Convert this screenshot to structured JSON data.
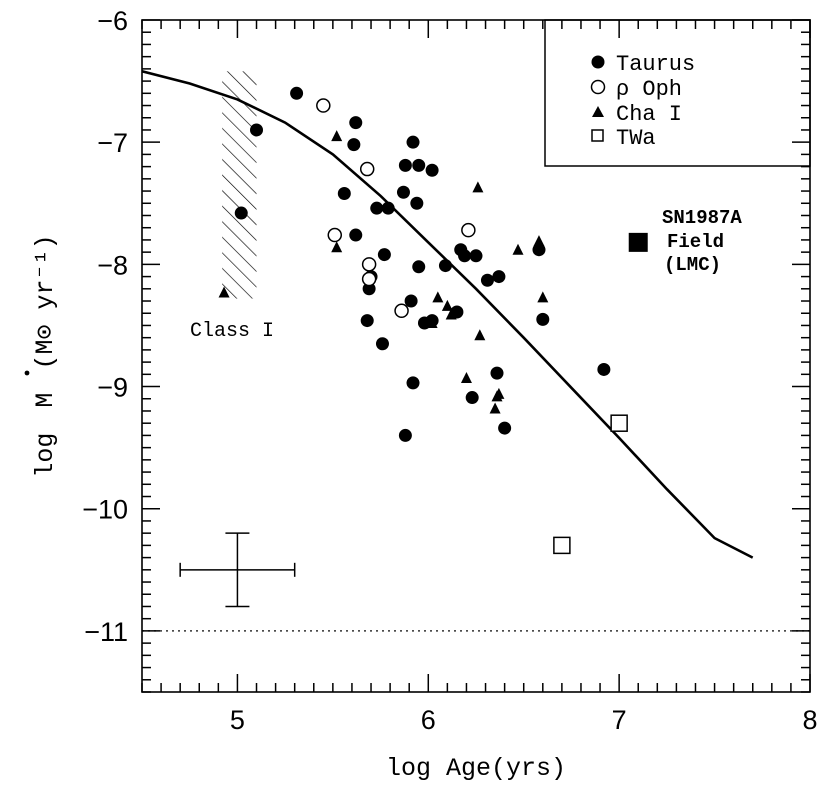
{
  "chart_data": {
    "type": "scatter",
    "xlabel": "log Age(yrs)",
    "ylabel_prefix": "log",
    "ylabel_symbol": "M",
    "ylabel_units": "(M⊙ yr⁻¹)",
    "xlim": [
      4.5,
      8
    ],
    "ylim": [
      -11.5,
      -6
    ],
    "xticks": [
      5,
      6,
      7,
      8
    ],
    "yticks": [
      -6,
      -7,
      -8,
      -9,
      -10,
      -11
    ],
    "xtick_labels": [
      "5",
      "6",
      "7",
      "8"
    ],
    "ytick_labels": [
      "−6",
      "−7",
      "−8",
      "−9",
      "−10",
      "−11"
    ],
    "series": [
      {
        "name": "Taurus",
        "marker": "filled-circle",
        "points": [
          [
            5.02,
            -7.58
          ],
          [
            5.1,
            -6.9
          ],
          [
            5.31,
            -6.6
          ],
          [
            5.56,
            -7.42
          ],
          [
            5.61,
            -7.02
          ],
          [
            5.62,
            -6.84
          ],
          [
            5.62,
            -7.76
          ],
          [
            5.68,
            -8.46
          ],
          [
            5.69,
            -8.2
          ],
          [
            5.7,
            -8.1
          ],
          [
            5.73,
            -7.54
          ],
          [
            5.76,
            -8.65
          ],
          [
            5.77,
            -7.92
          ],
          [
            5.79,
            -7.54
          ],
          [
            5.87,
            -7.41
          ],
          [
            5.88,
            -7.19
          ],
          [
            5.88,
            -9.4
          ],
          [
            5.91,
            -8.3
          ],
          [
            5.92,
            -7.0
          ],
          [
            5.92,
            -8.97
          ],
          [
            5.94,
            -7.5
          ],
          [
            5.95,
            -8.02
          ],
          [
            5.95,
            -7.19
          ],
          [
            5.98,
            -8.48
          ],
          [
            6.02,
            -7.23
          ],
          [
            6.02,
            -8.46
          ],
          [
            6.09,
            -8.01
          ],
          [
            6.15,
            -8.39
          ],
          [
            6.17,
            -7.88
          ],
          [
            6.19,
            -7.93
          ],
          [
            6.23,
            -9.09
          ],
          [
            6.25,
            -7.93
          ],
          [
            6.31,
            -8.13
          ],
          [
            6.36,
            -8.89
          ],
          [
            6.37,
            -8.1
          ],
          [
            6.4,
            -9.34
          ],
          [
            6.58,
            -7.88
          ],
          [
            6.6,
            -8.45
          ],
          [
            6.92,
            -8.86
          ]
        ]
      },
      {
        "name": "ρ Oph",
        "marker": "open-circle",
        "points": [
          [
            5.45,
            -6.7
          ],
          [
            5.51,
            -7.76
          ],
          [
            5.68,
            -7.22
          ],
          [
            5.69,
            -8.0
          ],
          [
            5.69,
            -8.12
          ],
          [
            5.86,
            -8.38
          ],
          [
            6.21,
            -7.72
          ]
        ]
      },
      {
        "name": "Cha I",
        "marker": "filled-triangle",
        "points": [
          [
            4.93,
            -8.23
          ],
          [
            5.52,
            -6.95
          ],
          [
            5.52,
            -7.86
          ],
          [
            6.02,
            -8.48
          ],
          [
            6.05,
            -8.27
          ],
          [
            6.1,
            -8.34
          ],
          [
            6.12,
            -8.41
          ],
          [
            6.2,
            -8.93
          ],
          [
            6.26,
            -7.37
          ],
          [
            6.27,
            -8.58
          ],
          [
            6.35,
            -9.18
          ],
          [
            6.36,
            -9.08
          ],
          [
            6.37,
            -9.06
          ],
          [
            6.47,
            -7.88
          ],
          [
            6.58,
            -7.84
          ],
          [
            6.58,
            -7.81
          ],
          [
            6.6,
            -8.27
          ]
        ]
      },
      {
        "name": "TWa",
        "marker": "open-square",
        "points": [
          [
            6.7,
            -10.3
          ],
          [
            7.0,
            -9.3
          ]
        ]
      }
    ],
    "fit_curve": [
      [
        4.5,
        -6.42
      ],
      [
        4.75,
        -6.52
      ],
      [
        5.0,
        -6.65
      ],
      [
        5.25,
        -6.84
      ],
      [
        5.5,
        -7.1
      ],
      [
        5.75,
        -7.44
      ],
      [
        6.0,
        -7.82
      ],
      [
        6.25,
        -8.2
      ],
      [
        6.5,
        -8.6
      ],
      [
        6.75,
        -9.01
      ],
      [
        7.0,
        -9.42
      ],
      [
        7.25,
        -9.84
      ],
      [
        7.5,
        -10.24
      ],
      [
        7.7,
        -10.4
      ]
    ],
    "dotted_line_y": -11,
    "class_I_region": {
      "x": [
        4.92,
        5.1
      ],
      "y": [
        -8.28,
        -6.42
      ],
      "label": "Class I"
    },
    "error_bar": {
      "x": 5.0,
      "y": -10.5,
      "xerr": 0.3,
      "yerr": 0.3
    },
    "sn1987a": {
      "x": 7.1,
      "y": -7.82,
      "lines": [
        "SN1987A",
        "Field",
        "(LMC)"
      ]
    },
    "legend": {
      "placement": "top-right",
      "entries": [
        "Taurus",
        "ρ Oph",
        "Cha I",
        "TWa"
      ]
    }
  }
}
